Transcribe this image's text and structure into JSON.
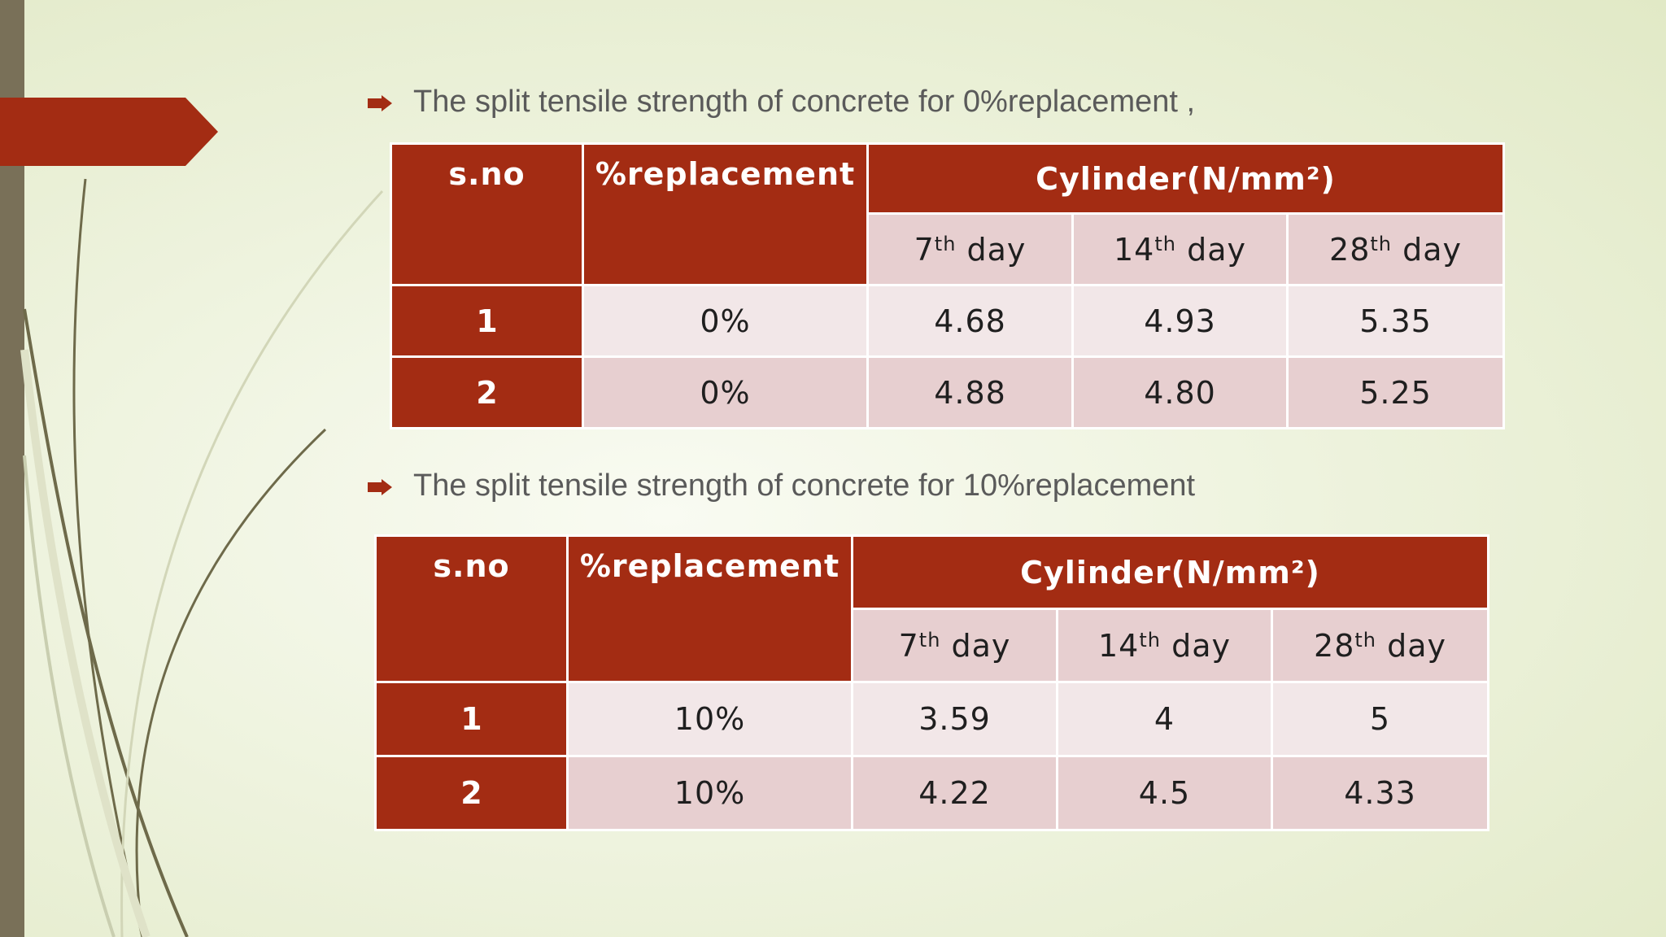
{
  "bullets": [
    "The split tensile strength of concrete for 0%replacement ,",
    "The split tensile strength of concrete for 10%replacement"
  ],
  "colors": {
    "accent": "#a32c13",
    "row_light": "#f2e7e8",
    "row_dark": "#e7cfd0",
    "left_bar": "#797058"
  },
  "tables": [
    {
      "header": {
        "sno": "s.no",
        "replacement": "%replacement",
        "group": "Cylinder(N/mm²)",
        "days": [
          {
            "num": "7",
            "suffix": "th",
            "word": "day"
          },
          {
            "num": "14",
            "suffix": "th",
            "word": "day"
          },
          {
            "num": "28",
            "suffix": "th",
            "word": "day"
          }
        ]
      },
      "rows": [
        {
          "sno": "1",
          "replacement": "0%",
          "values": [
            "4.68",
            "4.93",
            "5.35"
          ]
        },
        {
          "sno": "2",
          "replacement": "0%",
          "values": [
            "4.88",
            "4.80",
            "5.25"
          ]
        }
      ]
    },
    {
      "header": {
        "sno": "s.no",
        "replacement": "%replacement",
        "group": "Cylinder(N/mm²)",
        "days": [
          {
            "num": "7",
            "suffix": "th",
            "word": "day"
          },
          {
            "num": "14",
            "suffix": "th",
            "word": "day"
          },
          {
            "num": "28",
            "suffix": "th",
            "word": "day"
          }
        ]
      },
      "rows": [
        {
          "sno": "1",
          "replacement": "10%",
          "values": [
            "3.59",
            "4",
            "5"
          ]
        },
        {
          "sno": "2",
          "replacement": "10%",
          "values": [
            "4.22",
            "4.5",
            "4.33"
          ]
        }
      ]
    }
  ]
}
